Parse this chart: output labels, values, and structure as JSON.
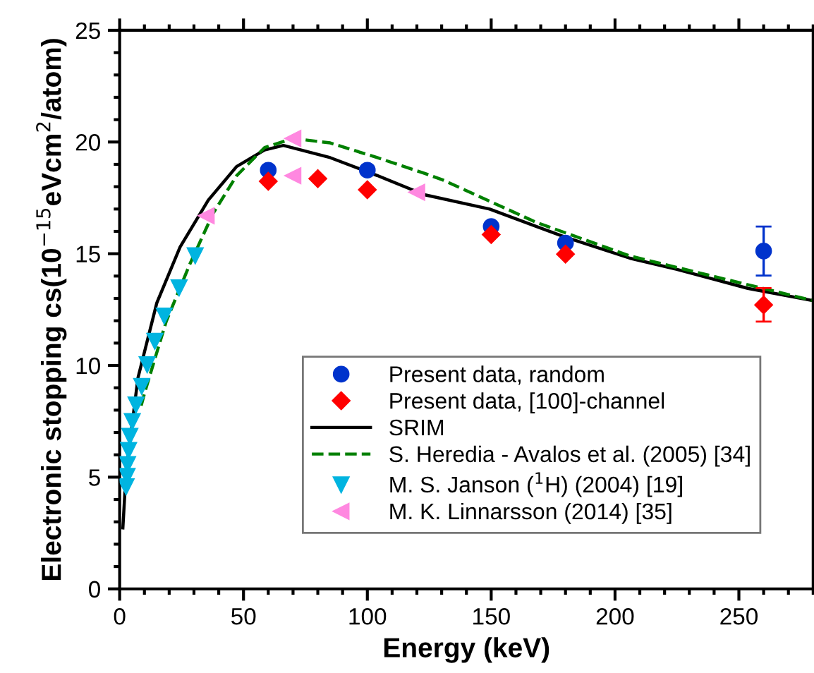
{
  "chart_data": {
    "type": "scatter",
    "xlabel": "Energy (keV)",
    "ylabel": "Electronic stopping cs(10$^{−15}$eVcm$^{2}$/atom)",
    "xlim": [
      0,
      280
    ],
    "ylim": [
      0,
      25
    ],
    "xticks": [
      0,
      50,
      100,
      150,
      200,
      250
    ],
    "yticks": [
      0,
      5,
      10,
      15,
      20,
      25
    ],
    "grid": false,
    "legend": "bottom right",
    "series": [
      {
        "name": "Present data, random",
        "marker": "circle",
        "color": "#0033cc",
        "x": [
          60,
          100,
          150,
          180,
          260
        ],
        "values": [
          18.74,
          18.74,
          16.22,
          15.48,
          15.12
        ],
        "errors": [
          null,
          null,
          null,
          null,
          1.1
        ]
      },
      {
        "name": "Present data, [100]-channel",
        "marker": "diamond",
        "color": "#ff0000",
        "x": [
          60,
          80,
          100,
          150,
          180,
          260
        ],
        "values": [
          18.24,
          18.36,
          17.86,
          15.86,
          14.98,
          12.71
        ],
        "errors": [
          null,
          null,
          null,
          null,
          null,
          0.75
        ]
      },
      {
        "name": "SRIM",
        "type": "line",
        "line_style": "solid",
        "color": "#000000",
        "x": [
          1.3,
          2.6,
          7.4,
          15,
          24.4,
          35.8,
          47.2,
          58.5,
          66.1,
          85,
          104,
          123,
          149.4,
          179.7,
          206,
          225,
          253.6,
          280
        ],
        "values": [
          2.73,
          5.25,
          9.45,
          12.8,
          15.3,
          17.4,
          18.9,
          19.64,
          19.85,
          19.3,
          18.5,
          17.64,
          17.0,
          15.75,
          14.8,
          14.3,
          13.45,
          12.9
        ]
      },
      {
        "name": "S. Heredia - Avalos et al. (2005) [34]",
        "type": "line",
        "line_style": "dashed",
        "color": "#008000",
        "x": [
          8.7,
          10.2,
          18.8,
          28.2,
          37.7,
          47.2,
          58.5,
          69.9,
          85,
          104,
          123,
          130.5,
          168.3,
          206,
          280
        ],
        "values": [
          8.2,
          8.82,
          11.97,
          14.5,
          16.8,
          18.49,
          19.75,
          20.16,
          19.96,
          19.3,
          18.6,
          18.3,
          16.4,
          14.9,
          12.9
        ]
      },
      {
        "name": "M. S. Janson ($^{1}$H) (2004) [19]",
        "marker": "triangle_down",
        "color": "#00b4e0",
        "x": [
          2.6,
          3.0,
          3.2,
          3.6,
          4.1,
          5.1,
          6.6,
          8.9,
          11.1,
          14.2,
          18.0,
          24.0,
          30.5
        ],
        "values": [
          4.58,
          5.04,
          5.57,
          6.2,
          6.83,
          7.5,
          8.24,
          9.07,
          10.04,
          11.09,
          12.22,
          13.48,
          14.92
        ]
      },
      {
        "name": "M. K. Linnarsson (2014) [35]",
        "marker": "triangle_left",
        "color": "#ff88e0",
        "x": [
          35,
          70,
          70,
          120
        ],
        "values": [
          16.7,
          20.16,
          18.49,
          17.75
        ]
      }
    ]
  }
}
